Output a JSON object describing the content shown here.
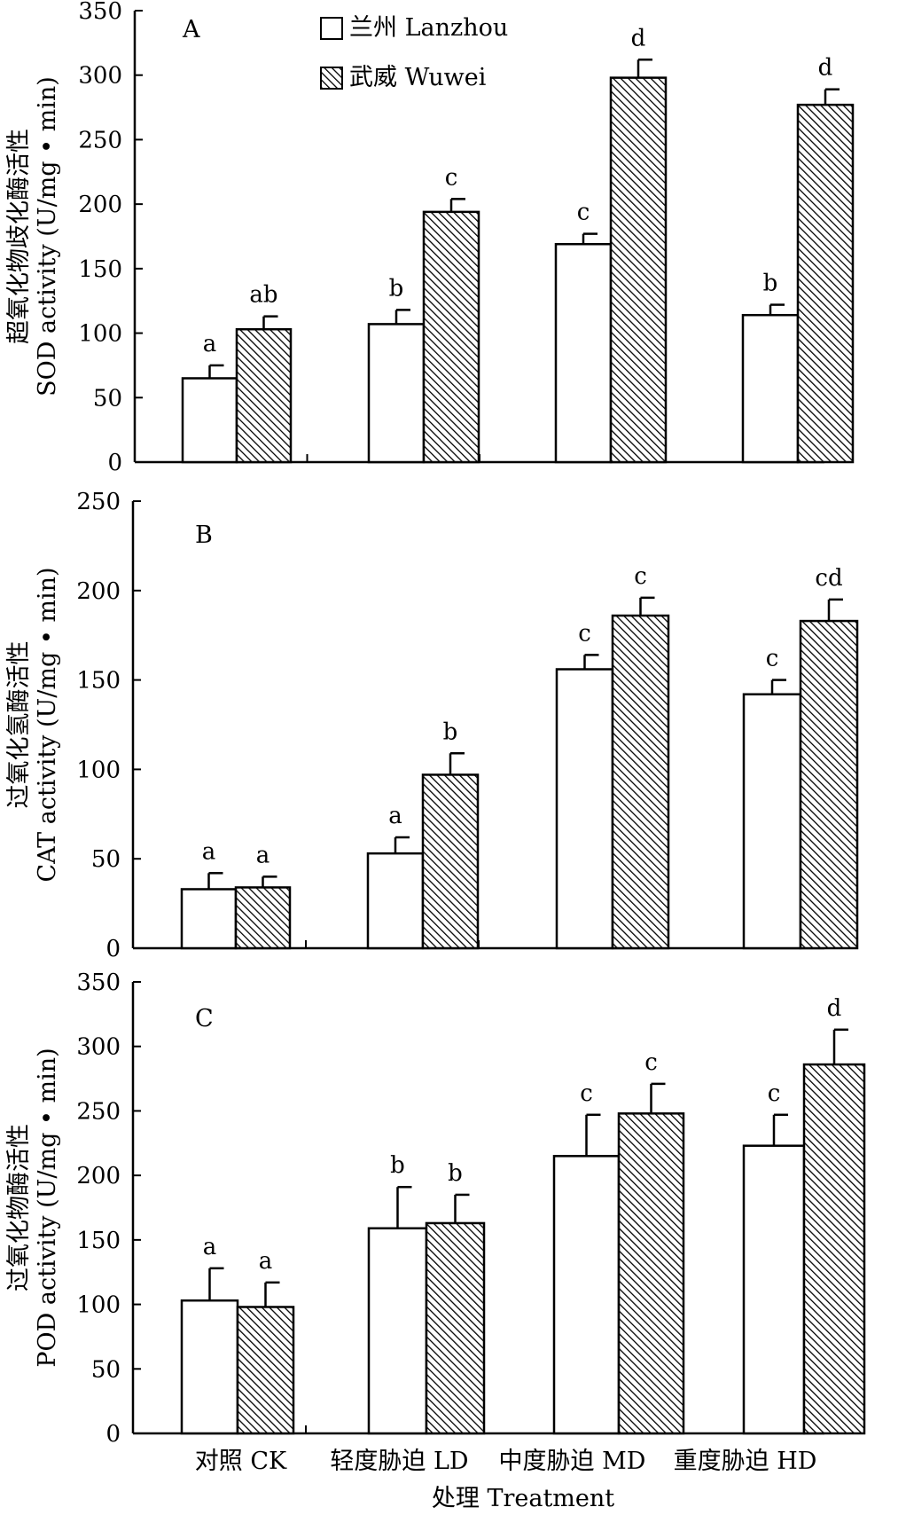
{
  "colors": {
    "axis": "#000000",
    "bar_fill_a": "#ffffff",
    "hatch_line": "#000000",
    "background": "#ffffff"
  },
  "legend": {
    "items": [
      {
        "label": "兰州 Lanzhou",
        "style": "open"
      },
      {
        "label": "武威 Wuwei",
        "style": "hatched"
      }
    ]
  },
  "chart_data": [
    {
      "type": "bar",
      "panel": "A",
      "ylabel_cn": "超氧化物歧化酶活性",
      "ylabel_en": "SOD activity (U/mg • min)",
      "ylim": [
        0,
        350
      ],
      "yticks": [
        0,
        50,
        100,
        150,
        200,
        250,
        300,
        350
      ],
      "categories": [
        "对照 CK",
        "轻度胁迫 LD",
        "中度胁迫 MD",
        "重度胁迫 HD"
      ],
      "series": [
        {
          "name": "兰州 Lanzhou",
          "values": [
            65,
            107,
            169,
            114
          ],
          "errors": [
            10,
            11,
            8,
            8
          ],
          "letters": [
            "a",
            "b",
            "c",
            "b"
          ]
        },
        {
          "name": "武威 Wuwei",
          "values": [
            103,
            194,
            298,
            277
          ],
          "errors": [
            10,
            10,
            14,
            12
          ],
          "letters": [
            "ab",
            "c",
            "d",
            "d"
          ]
        }
      ]
    },
    {
      "type": "bar",
      "panel": "B",
      "ylabel_cn": "过氧化氢酶活性",
      "ylabel_en": "CAT activity (U/mg • min)",
      "ylim": [
        0,
        250
      ],
      "yticks": [
        0,
        50,
        100,
        150,
        200,
        250
      ],
      "categories": [
        "对照 CK",
        "轻度胁迫 LD",
        "中度胁迫 MD",
        "重度胁迫 HD"
      ],
      "series": [
        {
          "name": "兰州 Lanzhou",
          "values": [
            33,
            53,
            156,
            142
          ],
          "errors": [
            9,
            9,
            8,
            8
          ],
          "letters": [
            "a",
            "a",
            "c",
            "c"
          ]
        },
        {
          "name": "武威 Wuwei",
          "values": [
            34,
            97,
            186,
            183
          ],
          "errors": [
            6,
            12,
            10,
            12
          ],
          "letters": [
            "a",
            "b",
            "c",
            "cd"
          ]
        }
      ]
    },
    {
      "type": "bar",
      "panel": "C",
      "ylabel_cn": "过氧化物酶活性",
      "ylabel_en": "POD activity (U/mg • min)",
      "ylim": [
        0,
        350
      ],
      "yticks": [
        0,
        50,
        100,
        150,
        200,
        250,
        300,
        350
      ],
      "categories": [
        "对照 CK",
        "轻度胁迫 LD",
        "中度胁迫 MD",
        "重度胁迫 HD"
      ],
      "xlabel": "处理 Treatment",
      "series": [
        {
          "name": "兰州 Lanzhou",
          "values": [
            103,
            159,
            215,
            223
          ],
          "errors": [
            25,
            32,
            32,
            24
          ],
          "letters": [
            "a",
            "b",
            "c",
            "c"
          ]
        },
        {
          "name": "武威 Wuwei",
          "values": [
            98,
            163,
            248,
            286
          ],
          "errors": [
            19,
            22,
            23,
            27
          ],
          "letters": [
            "a",
            "b",
            "c",
            "d"
          ]
        }
      ]
    }
  ]
}
